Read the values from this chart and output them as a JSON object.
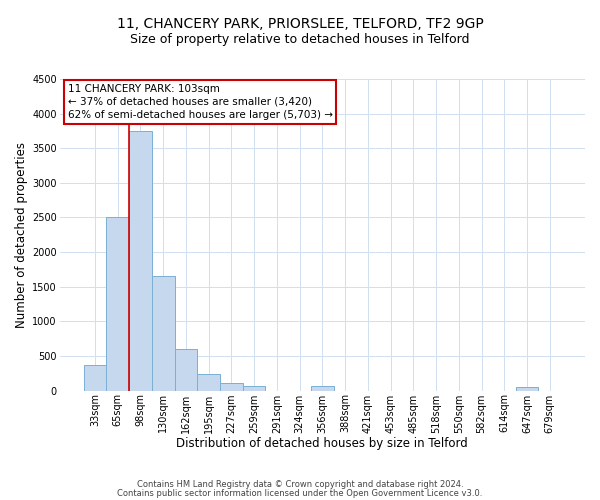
{
  "title": "11, CHANCERY PARK, PRIORSLEE, TELFORD, TF2 9GP",
  "subtitle": "Size of property relative to detached houses in Telford",
  "xlabel": "Distribution of detached houses by size in Telford",
  "ylabel": "Number of detached properties",
  "categories": [
    "33sqm",
    "65sqm",
    "98sqm",
    "130sqm",
    "162sqm",
    "195sqm",
    "227sqm",
    "259sqm",
    "291sqm",
    "324sqm",
    "356sqm",
    "388sqm",
    "421sqm",
    "453sqm",
    "485sqm",
    "518sqm",
    "550sqm",
    "582sqm",
    "614sqm",
    "647sqm",
    "679sqm"
  ],
  "values": [
    375,
    2500,
    3750,
    1650,
    600,
    245,
    110,
    60,
    0,
    0,
    60,
    0,
    0,
    0,
    0,
    0,
    0,
    0,
    0,
    50,
    0
  ],
  "bar_color": "#c5d8ee",
  "bar_edge_color": "#7aafd4",
  "red_line_index": 2,
  "annotation_title": "11 CHANCERY PARK: 103sqm",
  "annotation_line1": "← 37% of detached houses are smaller (3,420)",
  "annotation_line2": "62% of semi-detached houses are larger (5,703) →",
  "annotation_box_facecolor": "#ffffff",
  "annotation_box_edgecolor": "#cc0000",
  "ylim": [
    0,
    4500
  ],
  "yticks": [
    0,
    500,
    1000,
    1500,
    2000,
    2500,
    3000,
    3500,
    4000,
    4500
  ],
  "background_color": "#ffffff",
  "grid_color": "#d0e0f0",
  "title_fontsize": 10,
  "subtitle_fontsize": 9,
  "axis_label_fontsize": 8.5,
  "tick_fontsize": 7,
  "annotation_fontsize": 7.5,
  "footer_fontsize": 6,
  "footer_line1": "Contains HM Land Registry data © Crown copyright and database right 2024.",
  "footer_line2": "Contains public sector information licensed under the Open Government Licence v3.0."
}
